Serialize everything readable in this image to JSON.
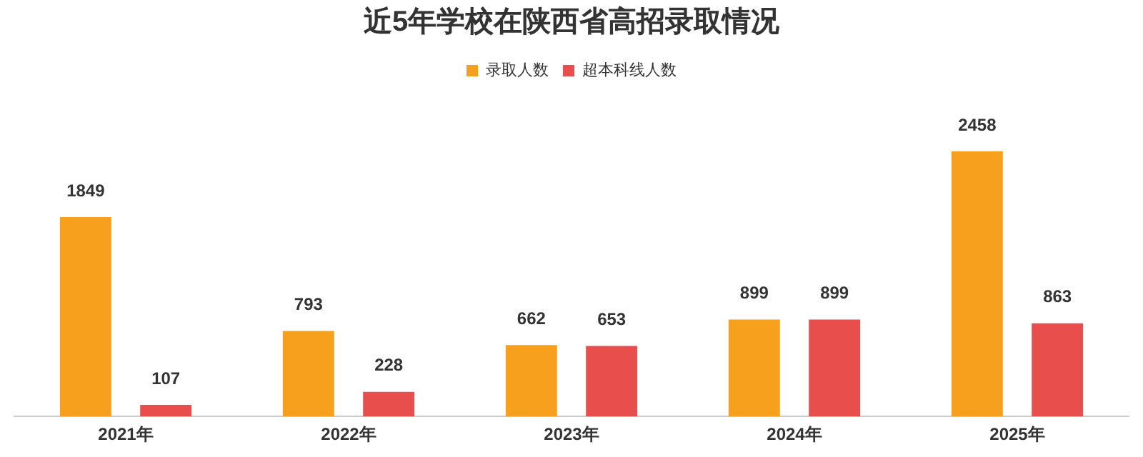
{
  "chart_data": {
    "type": "bar",
    "title": "近5年学校在陕西省高招录取情况",
    "categories": [
      "2021年",
      "2022年",
      "2023年",
      "2024年",
      "2025年"
    ],
    "series": [
      {
        "name": "录取人数",
        "color": "#f7a01e",
        "values": [
          1849,
          793,
          662,
          899,
          2458
        ]
      },
      {
        "name": "超本科线人数",
        "color": "#e84e4c",
        "values": [
          107,
          228,
          653,
          899,
          863
        ]
      }
    ],
    "data_labels": true,
    "legend": "top",
    "grid": false,
    "tick_labels": "x"
  }
}
